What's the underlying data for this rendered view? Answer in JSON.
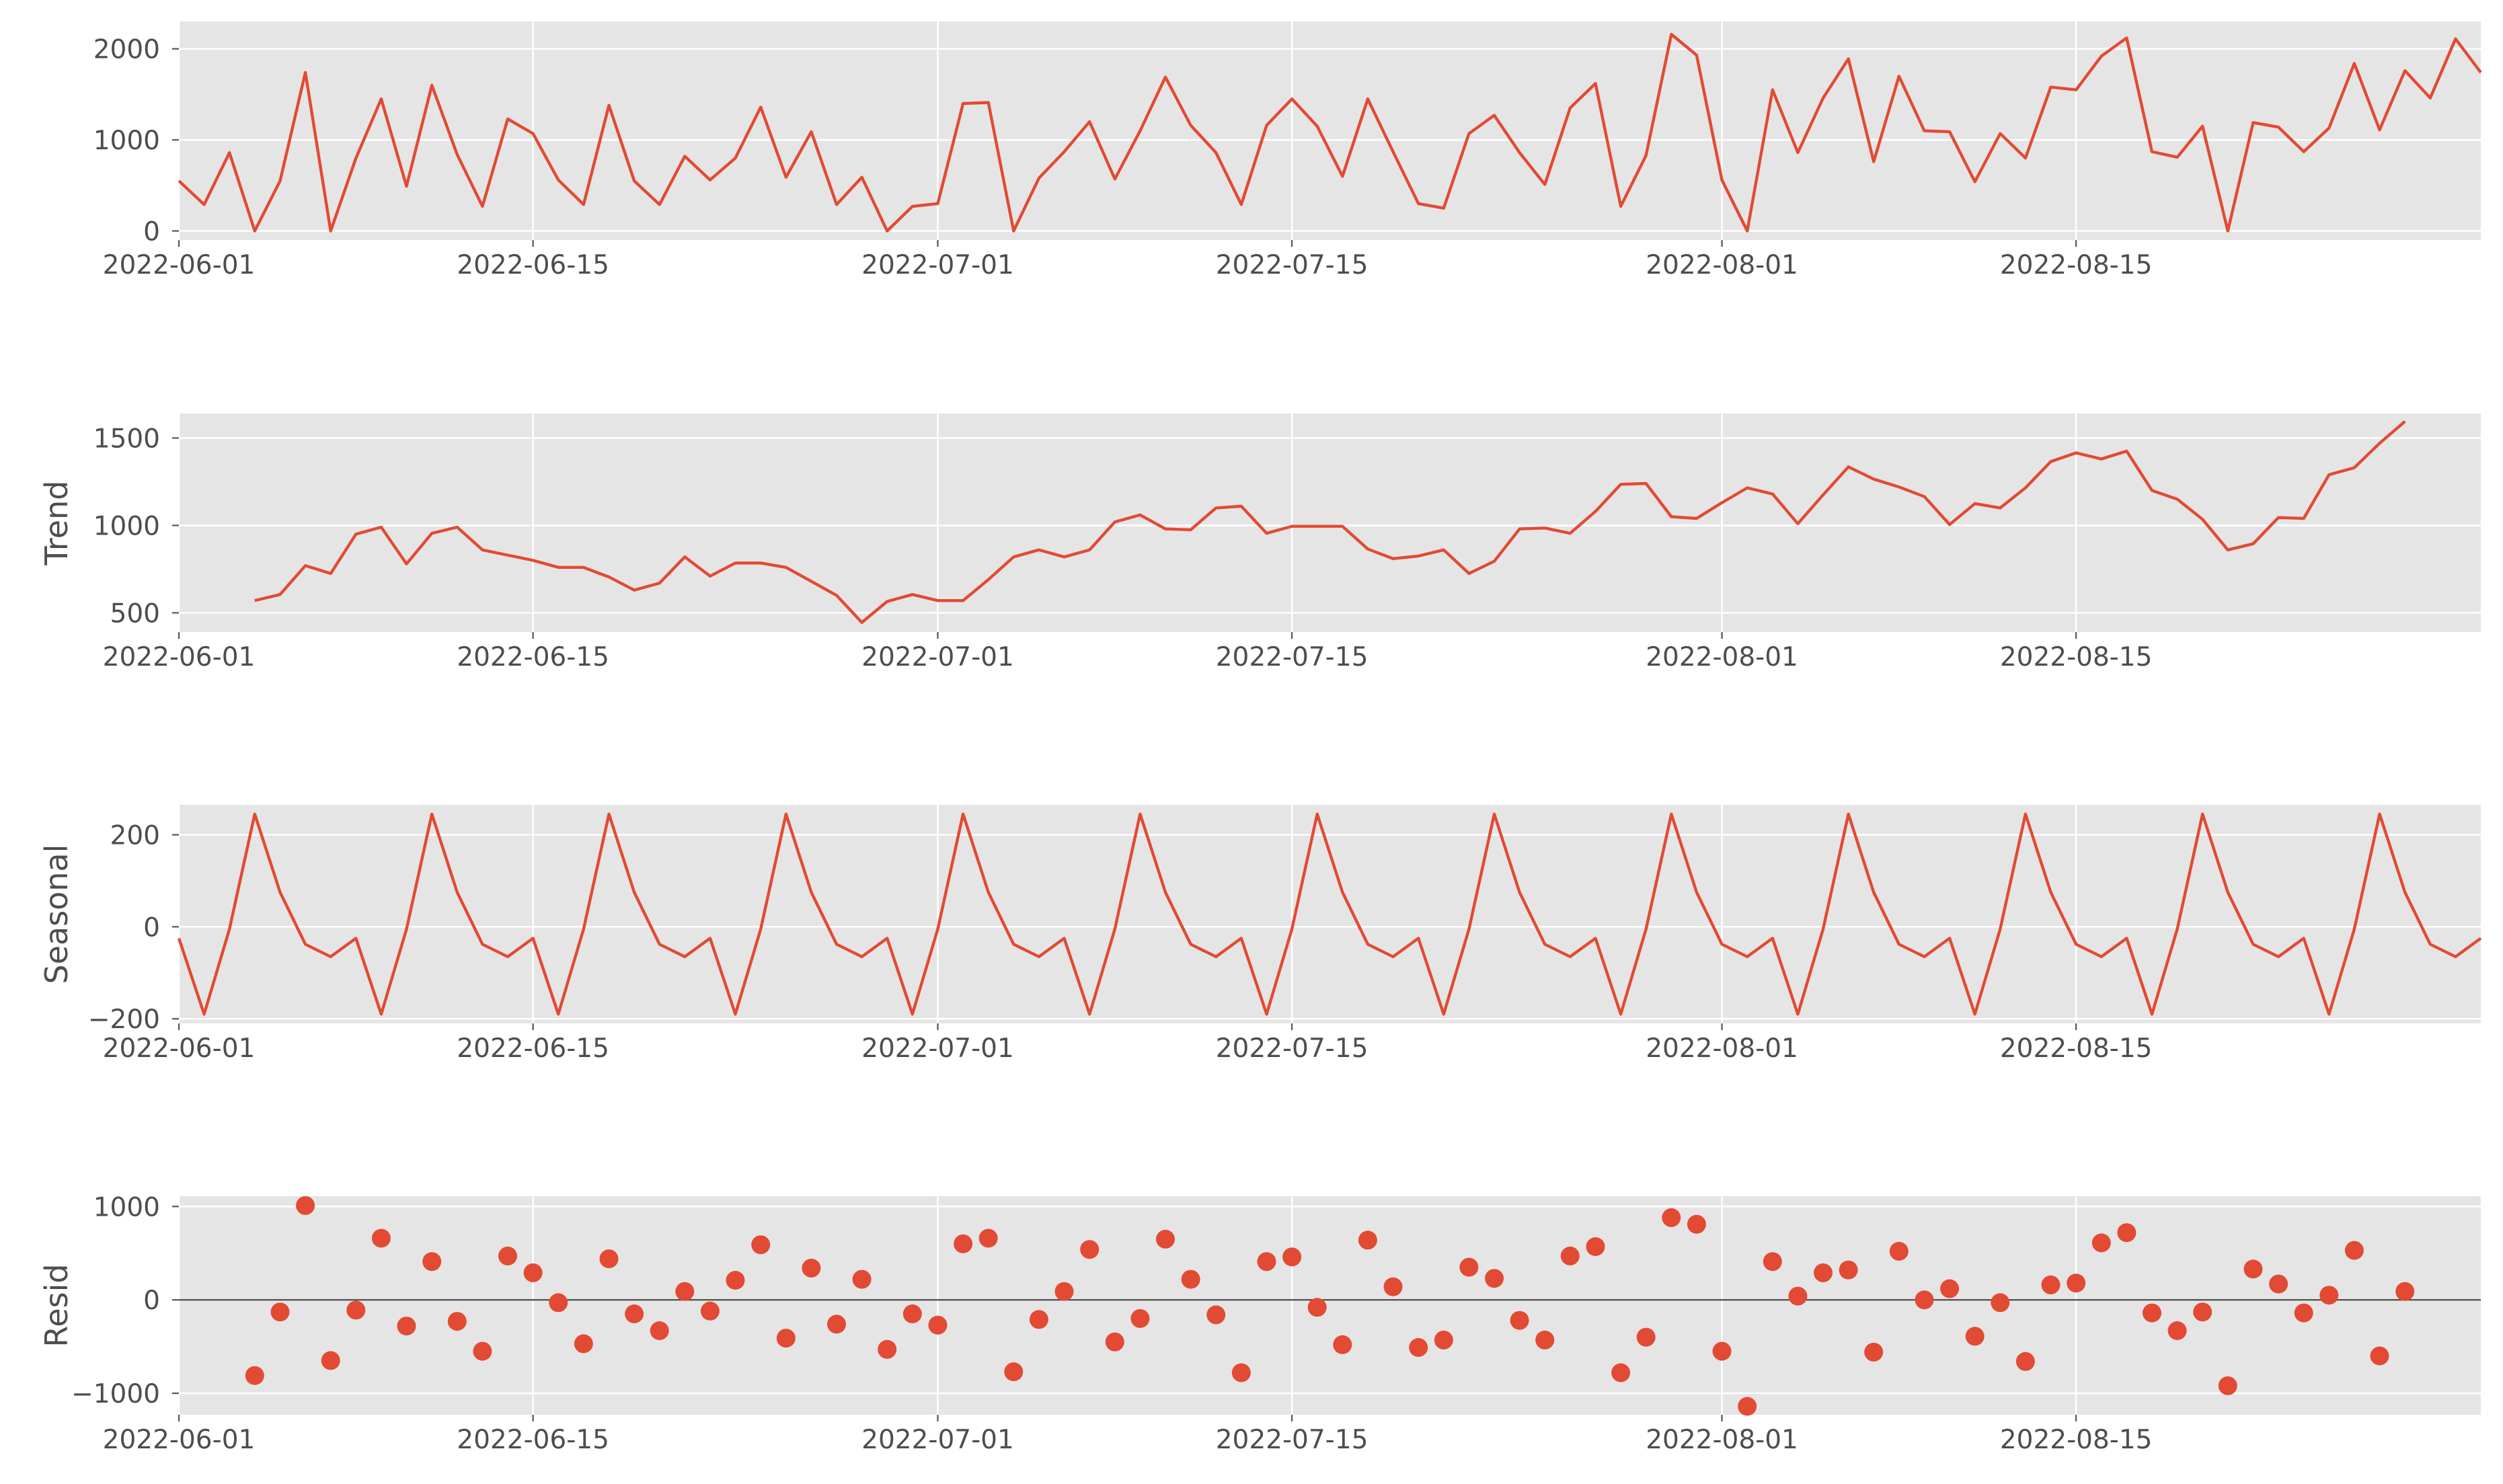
{
  "colors": {
    "series": "#e24a33",
    "panel_background": "#e5e5e5",
    "grid": "#ffffff",
    "text": "#4d4d4d"
  },
  "chart_data": [
    {
      "type": "line",
      "ylabel": "",
      "ylim": [
        -100,
        2300
      ],
      "yticks": [
        0,
        1000,
        2000
      ],
      "yticklabels": [
        "0",
        "1000",
        "2000"
      ],
      "xlim": [
        "2022-06-01",
        "2022-08-31"
      ],
      "xticks": [
        "2022-06-01",
        "2022-06-15",
        "2022-07-01",
        "2022-07-15",
        "2022-08-01",
        "2022-08-15"
      ],
      "grid": true,
      "x": [
        "2022-06-01",
        "2022-06-02",
        "2022-06-03",
        "2022-06-04",
        "2022-06-05",
        "2022-06-06",
        "2022-06-07",
        "2022-06-08",
        "2022-06-09",
        "2022-06-10",
        "2022-06-11",
        "2022-06-12",
        "2022-06-13",
        "2022-06-14",
        "2022-06-15",
        "2022-06-16",
        "2022-06-17",
        "2022-06-18",
        "2022-06-19",
        "2022-06-20",
        "2022-06-21",
        "2022-06-22",
        "2022-06-23",
        "2022-06-24",
        "2022-06-25",
        "2022-06-26",
        "2022-06-27",
        "2022-06-28",
        "2022-06-29",
        "2022-06-30",
        "2022-07-01",
        "2022-07-02",
        "2022-07-03",
        "2022-07-04",
        "2022-07-05",
        "2022-07-06",
        "2022-07-07",
        "2022-07-08",
        "2022-07-09",
        "2022-07-10",
        "2022-07-11",
        "2022-07-12",
        "2022-07-13",
        "2022-07-14",
        "2022-07-15",
        "2022-07-16",
        "2022-07-17",
        "2022-07-18",
        "2022-07-19",
        "2022-07-20",
        "2022-07-21",
        "2022-07-22",
        "2022-07-23",
        "2022-07-24",
        "2022-07-25",
        "2022-07-26",
        "2022-07-27",
        "2022-07-28",
        "2022-07-29",
        "2022-07-30",
        "2022-07-31",
        "2022-08-01",
        "2022-08-02",
        "2022-08-03",
        "2022-08-04",
        "2022-08-05",
        "2022-08-06",
        "2022-08-07",
        "2022-08-08",
        "2022-08-09",
        "2022-08-10",
        "2022-08-11",
        "2022-08-12",
        "2022-08-13",
        "2022-08-14",
        "2022-08-15",
        "2022-08-16",
        "2022-08-17",
        "2022-08-18",
        "2022-08-19",
        "2022-08-20",
        "2022-08-21",
        "2022-08-22",
        "2022-08-23",
        "2022-08-24",
        "2022-08-25",
        "2022-08-26",
        "2022-08-27",
        "2022-08-28",
        "2022-08-29",
        "2022-08-30",
        "2022-08-31"
      ],
      "values": [
        550,
        290,
        860,
        0,
        550,
        1740,
        0,
        800,
        1450,
        490,
        1600,
        840,
        270,
        1230,
        1070,
        560,
        290,
        1380,
        550,
        290,
        820,
        560,
        800,
        1360,
        590,
        1090,
        290,
        590,
        0,
        270,
        300,
        1400,
        1410,
        0,
        580,
        870,
        1200,
        570,
        1100,
        1690,
        1160,
        860,
        290,
        1160,
        1450,
        1150,
        600,
        1450,
        870,
        300,
        250,
        1070,
        1270,
        860,
        510,
        1350,
        1620,
        270,
        830,
        2160,
        1930,
        560,
        0,
        1550,
        860,
        1460,
        1890,
        760,
        1700,
        1100,
        1090,
        540,
        1070,
        800,
        1580,
        1550,
        1920,
        2120,
        870,
        810,
        1150,
        0,
        1190,
        1140,
        870,
        1130,
        1840,
        1110,
        1760,
        1460,
        2110,
        1740
      ]
    },
    {
      "type": "line",
      "ylabel": "Trend",
      "ylim": [
        390,
        1640
      ],
      "yticks": [
        500,
        1000,
        1500
      ],
      "yticklabels": [
        "500",
        "1000",
        "1500"
      ],
      "xlim": [
        "2022-06-01",
        "2022-08-31"
      ],
      "xticks": [
        "2022-06-01",
        "2022-06-15",
        "2022-07-01",
        "2022-07-15",
        "2022-08-01",
        "2022-08-15"
      ],
      "grid": true,
      "x": [
        "2022-06-04",
        "2022-06-05",
        "2022-06-06",
        "2022-06-07",
        "2022-06-08",
        "2022-06-09",
        "2022-06-10",
        "2022-06-11",
        "2022-06-12",
        "2022-06-13",
        "2022-06-14",
        "2022-06-15",
        "2022-06-16",
        "2022-06-17",
        "2022-06-18",
        "2022-06-19",
        "2022-06-20",
        "2022-06-21",
        "2022-06-22",
        "2022-06-23",
        "2022-06-24",
        "2022-06-25",
        "2022-06-26",
        "2022-06-27",
        "2022-06-28",
        "2022-06-29",
        "2022-06-30",
        "2022-07-01",
        "2022-07-02",
        "2022-07-03",
        "2022-07-04",
        "2022-07-05",
        "2022-07-06",
        "2022-07-07",
        "2022-07-08",
        "2022-07-09",
        "2022-07-10",
        "2022-07-11",
        "2022-07-12",
        "2022-07-13",
        "2022-07-14",
        "2022-07-15",
        "2022-07-16",
        "2022-07-17",
        "2022-07-18",
        "2022-07-19",
        "2022-07-20",
        "2022-07-21",
        "2022-07-22",
        "2022-07-23",
        "2022-07-24",
        "2022-07-25",
        "2022-07-26",
        "2022-07-27",
        "2022-07-28",
        "2022-07-29",
        "2022-07-30",
        "2022-07-31",
        "2022-08-01",
        "2022-08-02",
        "2022-08-03",
        "2022-08-04",
        "2022-08-05",
        "2022-08-06",
        "2022-08-07",
        "2022-08-08",
        "2022-08-09",
        "2022-08-10",
        "2022-08-11",
        "2022-08-12",
        "2022-08-13",
        "2022-08-14",
        "2022-08-15",
        "2022-08-16",
        "2022-08-17",
        "2022-08-18",
        "2022-08-19",
        "2022-08-20",
        "2022-08-21",
        "2022-08-22",
        "2022-08-23",
        "2022-08-24",
        "2022-08-25",
        "2022-08-26",
        "2022-08-27",
        "2022-08-28"
      ],
      "values": [
        570,
        605,
        770,
        725,
        950,
        990,
        780,
        955,
        990,
        860,
        830,
        800,
        760,
        760,
        705,
        630,
        670,
        820,
        710,
        785,
        785,
        760,
        680,
        600,
        445,
        565,
        605,
        570,
        570,
        690,
        820,
        860,
        820,
        860,
        1020,
        1060,
        980,
        975,
        1100,
        1110,
        955,
        995,
        995,
        995,
        865,
        810,
        825,
        860,
        725,
        795,
        980,
        985,
        955,
        1080,
        1235,
        1240,
        1050,
        1040,
        1130,
        1215,
        1180,
        1010,
        1175,
        1335,
        1265,
        1220,
        1165,
        1005,
        1125,
        1100,
        1215,
        1365,
        1415,
        1380,
        1425,
        1200,
        1150,
        1035,
        860,
        895,
        1045,
        1040,
        1290,
        1330,
        1470,
        1595
      ]
    },
    {
      "type": "line",
      "ylabel": "Seasonal",
      "ylim": [
        -210,
        265
      ],
      "yticks": [
        -200,
        0,
        200
      ],
      "yticklabels": [
        "−200",
        "0",
        "200"
      ],
      "xlim": [
        "2022-06-01",
        "2022-08-31"
      ],
      "xticks": [
        "2022-06-01",
        "2022-06-15",
        "2022-07-01",
        "2022-07-15",
        "2022-08-01",
        "2022-08-15"
      ],
      "grid": true,
      "start": "2022-06-01",
      "period_pattern": [
        -25,
        -190,
        -5,
        245,
        75,
        -38,
        -65
      ],
      "count": 92
    },
    {
      "type": "scatter",
      "ylabel": "Resid",
      "ylim": [
        -1230,
        1110
      ],
      "yticks": [
        -1000,
        0,
        1000
      ],
      "yticklabels": [
        "−1000",
        "0",
        "1000"
      ],
      "xlim": [
        "2022-06-01",
        "2022-08-31"
      ],
      "xticks": [
        "2022-06-01",
        "2022-06-15",
        "2022-07-01",
        "2022-07-15",
        "2022-08-01",
        "2022-08-15"
      ],
      "grid": true,
      "zero_line": true,
      "x": [
        "2022-06-04",
        "2022-06-05",
        "2022-06-06",
        "2022-06-07",
        "2022-06-08",
        "2022-06-09",
        "2022-06-10",
        "2022-06-11",
        "2022-06-12",
        "2022-06-13",
        "2022-06-14",
        "2022-06-15",
        "2022-06-16",
        "2022-06-17",
        "2022-06-18",
        "2022-06-19",
        "2022-06-20",
        "2022-06-21",
        "2022-06-22",
        "2022-06-23",
        "2022-06-24",
        "2022-06-25",
        "2022-06-26",
        "2022-06-27",
        "2022-06-28",
        "2022-06-29",
        "2022-06-30",
        "2022-07-01",
        "2022-07-02",
        "2022-07-03",
        "2022-07-04",
        "2022-07-05",
        "2022-07-06",
        "2022-07-07",
        "2022-07-08",
        "2022-07-09",
        "2022-07-10",
        "2022-07-11",
        "2022-07-12",
        "2022-07-13",
        "2022-07-14",
        "2022-07-15",
        "2022-07-16",
        "2022-07-17",
        "2022-07-18",
        "2022-07-19",
        "2022-07-20",
        "2022-07-21",
        "2022-07-22",
        "2022-07-23",
        "2022-07-24",
        "2022-07-25",
        "2022-07-26",
        "2022-07-27",
        "2022-07-28",
        "2022-07-29",
        "2022-07-30",
        "2022-07-31",
        "2022-08-01",
        "2022-08-02",
        "2022-08-03",
        "2022-08-04",
        "2022-08-05",
        "2022-08-06",
        "2022-08-07",
        "2022-08-08",
        "2022-08-09",
        "2022-08-10",
        "2022-08-11",
        "2022-08-12",
        "2022-08-13",
        "2022-08-14",
        "2022-08-15",
        "2022-08-16",
        "2022-08-17",
        "2022-08-18",
        "2022-08-19",
        "2022-08-20",
        "2022-08-21",
        "2022-08-22",
        "2022-08-23",
        "2022-08-24",
        "2022-08-25",
        "2022-08-26",
        "2022-08-27",
        "2022-08-28"
      ],
      "values": [
        -810,
        -130,
        1010,
        -650,
        -110,
        660,
        -280,
        410,
        -230,
        -550,
        470,
        290,
        -30,
        -470,
        440,
        -150,
        -330,
        90,
        -120,
        210,
        590,
        -410,
        340,
        -260,
        220,
        -530,
        -150,
        -270,
        600,
        660,
        -770,
        -210,
        90,
        540,
        -450,
        -200,
        650,
        220,
        -160,
        -780,
        410,
        460,
        -80,
        -480,
        640,
        140,
        -510,
        -430,
        350,
        230,
        -220,
        -430,
        470,
        570,
        -780,
        -400,
        880,
        810,
        -550,
        -1140,
        410,
        40,
        290,
        320,
        -560,
        520,
        0,
        120,
        -390,
        -30,
        -660,
        160,
        180,
        610,
        720,
        -140,
        -330,
        -130,
        -920,
        330,
        170,
        -140,
        50,
        530,
        -600,
        90
      ]
    }
  ]
}
